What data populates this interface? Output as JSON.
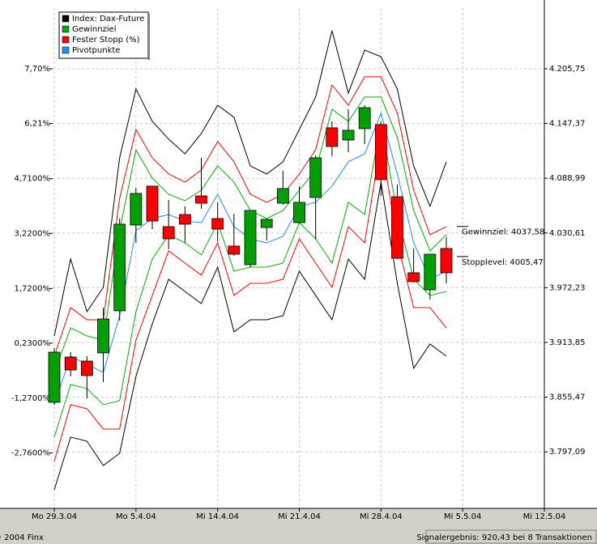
{
  "chart_data": {
    "type": "candlestick",
    "ylim": [
      3736.85,
      4270.52
    ],
    "yticks": [
      {
        "value": 4205.75,
        "label": "4.205,75"
      },
      {
        "value": 4147.37,
        "label": "4.147,37"
      },
      {
        "value": 4088.99,
        "label": "4.088,99"
      },
      {
        "value": 4030.61,
        "label": "4.030,61"
      },
      {
        "value": 3972.23,
        "label": "3.972,23"
      },
      {
        "value": 3913.85,
        "label": "3.913,85"
      },
      {
        "value": 3855.47,
        "label": "3.855,47"
      },
      {
        "value": 3797.09,
        "label": "3.797,09"
      }
    ],
    "y2lim": [
      -4.268,
      9.353
    ],
    "y2ticks": [
      {
        "value": 7.7,
        "label": "7,70%"
      },
      {
        "value": 6.21,
        "label": "6,21%"
      },
      {
        "value": 4.71,
        "label": "4,7100%"
      },
      {
        "value": 3.22,
        "label": "3,2200%"
      },
      {
        "value": 1.72,
        "label": "1,7200%"
      },
      {
        "value": 0.23,
        "label": "0,2300%"
      },
      {
        "value": -1.27,
        "label": "-1,2700%"
      },
      {
        "value": -2.76,
        "label": "-2,7600%"
      }
    ],
    "xlim": [
      -0.1,
      30
    ],
    "xticks": [
      {
        "value": 0,
        "label": "Mo 29.3.04"
      },
      {
        "value": 5,
        "label": "Mo 5.4.04"
      },
      {
        "value": 10,
        "label": "Mi 14.4.04"
      },
      {
        "value": 15,
        "label": "Mi 21.4.04"
      },
      {
        "value": 20,
        "label": "Mi 28.4.04"
      },
      {
        "value": 25,
        "label": "Mi 5.5.04"
      },
      {
        "value": 30,
        "label": "Mi 12.5.04"
      }
    ],
    "grid": true,
    "legend": "top-left",
    "x": [
      0,
      1,
      2,
      3,
      4,
      5,
      6,
      7,
      8,
      9,
      10,
      11,
      12,
      13,
      14,
      15,
      16,
      17,
      18,
      19,
      20,
      21,
      22,
      23,
      24
    ],
    "candles": {
      "name": "Index: Dax-Future",
      "color": "#000000",
      "up_color": "#00a000",
      "down_color": "#ff0000",
      "open": [
        3850.0,
        3898.3,
        3894.0,
        3902.7,
        3947.6,
        4039.1,
        4080.6,
        4037.4,
        4050.3,
        4070.2,
        4046.0,
        4016.7,
        3996.8,
        4036.5,
        4062.4,
        4041.7,
        4068.5,
        4142.8,
        4129.8,
        4141.9,
        4146.2,
        4069.3,
        3988.2,
        3970.0,
        4014.1
      ],
      "high": [
        3907.9,
        3903.5,
        3899.2,
        3951.0,
        4046.0,
        4078.8,
        4080.6,
        4065.9,
        4059.0,
        4110.8,
        4063.3,
        4051.2,
        4054.7,
        4045.2,
        4097.0,
        4080.6,
        4113.4,
        4149.7,
        4162.6,
        4166.9,
        4146.2,
        4082.3,
        4014.1,
        4008.0,
        4026.2
      ],
      "low": [
        3847.4,
        3877.6,
        3854.3,
        3871.6,
        3937.2,
        4020.1,
        4034.8,
        4013.2,
        4020.1,
        4056.4,
        4021.8,
        4006.3,
        3994.2,
        4022.7,
        4060.7,
        4040.8,
        4023.6,
        4112.5,
        4116.8,
        4125.5,
        4070.2,
        4002.8,
        3977.8,
        3959.7,
        3976.9
      ],
      "close": [
        3903.5,
        3884.5,
        3878.5,
        3938.9,
        4040.0,
        4072.8,
        4043.4,
        4024.4,
        4040.0,
        4062.4,
        4034.8,
        4008.0,
        4054.7,
        4045.2,
        4078.0,
        4063.3,
        4110.8,
        4122.9,
        4140.2,
        4164.3,
        4087.5,
        4003.7,
        3978.7,
        4008.0,
        3988.2
      ],
      "upper": [
        3920.8,
        4002.8,
        3946.7,
        3972.6,
        4110.8,
        4184.2,
        4149.7,
        4130.7,
        4115.1,
        4136.7,
        4166.9,
        4154.0,
        4102.2,
        4093.5,
        4106.5,
        4141.0,
        4175.6,
        4246.4,
        4179.9,
        4225.7,
        4218.7,
        4184.2,
        4102.2,
        4059.0,
        4106.5
      ],
      "lower": [
        3756.7,
        3812.9,
        3808.5,
        3782.6,
        3795.6,
        3877.6,
        3933.8,
        3981.3,
        3968.3,
        3955.3,
        3994.2,
        3925.1,
        3938.1,
        3938.1,
        3942.4,
        3989.9,
        3964.0,
        3938.1,
        4002.8,
        3981.3,
        4084.9,
        3976.9,
        3886.3,
        3912.2,
        3899.2
      ]
    },
    "series": [
      {
        "name": "Gewinnziel",
        "color": "#00b000",
        "upper": [
          3881.9,
          3929.4,
          3920.8,
          3916.5,
          4033.1,
          4119.4,
          4089.2,
          4071.9,
          4065.0,
          4076.3,
          4102.2,
          4084.9,
          4054.7,
          4046.0,
          4054.7,
          4076.3,
          4097.8,
          4162.6,
          4149.7,
          4175.6,
          4175.6,
          4132.4,
          4054.7,
          4011.5,
          4028.8
        ],
        "lower": [
          3812.9,
          3869.0,
          3864.7,
          3847.4,
          3851.7,
          3946.7,
          4002.8,
          4028.8,
          4020.1,
          4007.2,
          4041.7,
          3989.9,
          3994.2,
          3994.2,
          3998.5,
          4041.7,
          4024.4,
          3998.5,
          4063.3,
          4050.3,
          4149.7,
          4050.3,
          3981.3,
          3964.0,
          3968.3
        ]
      },
      {
        "name": "Fester Stopp (%)",
        "color": "#ff0000",
        "upper": [
          3899.2,
          3951.0,
          3938.1,
          3938.1,
          4067.6,
          4141.0,
          4110.8,
          4093.5,
          4084.9,
          4097.8,
          4128.1,
          4106.5,
          4071.9,
          4063.3,
          4071.9,
          4093.5,
          4119.4,
          4188.5,
          4166.9,
          4197.2,
          4197.2,
          4158.3,
          4076.3,
          4028.8,
          4037.4
        ],
        "lower": [
          3786.9,
          3847.4,
          3843.1,
          3821.5,
          3821.5,
          3916.5,
          3964.0,
          4011.5,
          3998.5,
          3985.6,
          4020.1,
          3964.0,
          3976.9,
          3976.9,
          3981.3,
          4024.4,
          3998.5,
          3972.6,
          4037.4,
          4020.1,
          4128.1,
          4020.1,
          3951.0,
          3951.0,
          3929.4
        ]
      },
      {
        "name": "Pivotpunkte",
        "color": "#1e8cff",
        "values": [
          3847.4,
          3899.2,
          3890.6,
          3881.9,
          3942.4,
          4033.1,
          4046.0,
          4050.3,
          4043.4,
          4041.7,
          4071.9,
          4037.4,
          4024.4,
          4020.1,
          4027.0,
          4059.0,
          4063.3,
          4080.6,
          4106.5,
          4115.1,
          4158.3,
          4093.5,
          4020.1,
          3981.3,
          3989.9
        ]
      }
    ],
    "annotations": [
      {
        "text": "Gewinnziel: 4037,58",
        "value": 4037.58
      },
      {
        "text": "Stopplevel: 4005,47",
        "value": 4005.47
      }
    ],
    "footer_left": "© 2004 Finx",
    "footer_right": "Signalergebnis: 920,43 bei 8 Transaktionen"
  }
}
